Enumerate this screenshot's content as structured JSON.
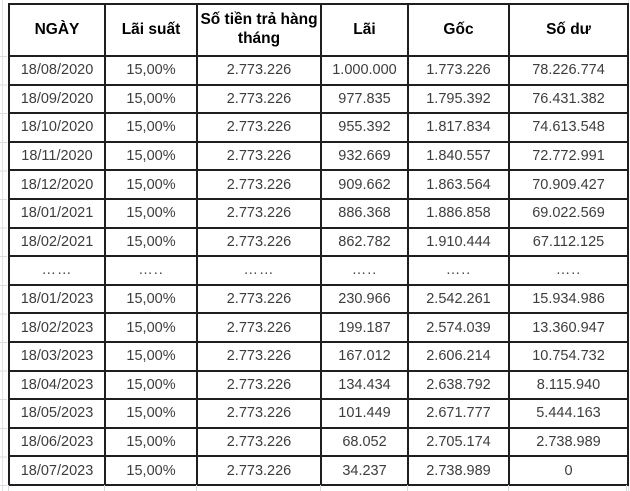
{
  "table": {
    "title": "loan-amortization-schedule",
    "columns": [
      "NGÀY",
      "Lãi suất",
      "Số tiền trả hàng tháng",
      "Lãi",
      "Gốc",
      "Số dư"
    ],
    "rows": [
      [
        "18/08/2020",
        "15,00%",
        "2.773.226",
        "1.000.000",
        "1.773.226",
        "78.226.774"
      ],
      [
        "18/09/2020",
        "15,00%",
        "2.773.226",
        "977.835",
        "1.795.392",
        "76.431.382"
      ],
      [
        "18/10/2020",
        "15,00%",
        "2.773.226",
        "955.392",
        "1.817.834",
        "74.613.548"
      ],
      [
        "18/11/2020",
        "15,00%",
        "2.773.226",
        "932.669",
        "1.840.557",
        "72.772.991"
      ],
      [
        "18/12/2020",
        "15,00%",
        "2.773.226",
        "909.662",
        "1.863.564",
        "70.909.427"
      ],
      [
        "18/01/2021",
        "15,00%",
        "2.773.226",
        "886.368",
        "1.886.858",
        "69.022.569"
      ],
      [
        "18/02/2021",
        "15,00%",
        "2.773.226",
        "862.782",
        "1.910.444",
        "67.112.125"
      ],
      [
        "……",
        "…..",
        "……",
        "…..",
        "…..",
        "….."
      ],
      [
        "18/01/2023",
        "15,00%",
        "2.773.226",
        "230.966",
        "2.542.261",
        "15.934.986"
      ],
      [
        "18/02/2023",
        "15,00%",
        "2.773.226",
        "199.187",
        "2.574.039",
        "13.360.947"
      ],
      [
        "18/03/2023",
        "15,00%",
        "2.773.226",
        "167.012",
        "2.606.214",
        "10.754.732"
      ],
      [
        "18/04/2023",
        "15,00%",
        "2.773.226",
        "134.434",
        "2.638.792",
        "8.115.940"
      ],
      [
        "18/05/2023",
        "15,00%",
        "2.773.226",
        "101.449",
        "2.671.777",
        "5.444.163"
      ],
      [
        "18/06/2023",
        "15,00%",
        "2.773.226",
        "68.052",
        "2.705.174",
        "2.738.989"
      ],
      [
        "18/07/2023",
        "15,00%",
        "2.773.226",
        "34.237",
        "2.738.989",
        "0"
      ]
    ],
    "ellipsis_row_index": 7
  },
  "colors": {
    "border": "#1f1f1f",
    "cell_text": "#3d3d3d",
    "header_text": "#000000",
    "gridline": "#d9d9d9",
    "background": "#ffffff"
  }
}
